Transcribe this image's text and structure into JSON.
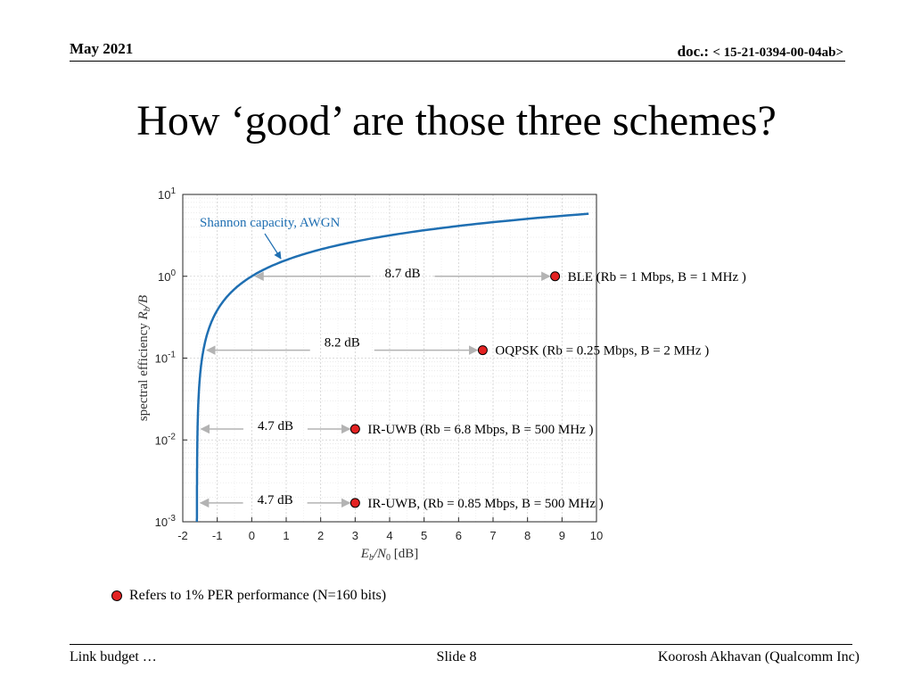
{
  "header": {
    "date": "May 2021",
    "doc_prefix": "doc.: ",
    "doc_number": "< 15-21-0394-00-04ab>"
  },
  "title": "How ‘good’ are those three schemes?",
  "chart_data": {
    "type": "line",
    "x_axis": {
      "label": "E_b/N_0 [dB]",
      "ticks": [
        -2,
        -1,
        0,
        1,
        2,
        3,
        4,
        5,
        6,
        7,
        8,
        9,
        10
      ],
      "range": [
        -2,
        10
      ]
    },
    "y_axis": {
      "label": "spectral efficiency R_b/B",
      "scale": "log",
      "range": [
        0.001,
        10
      ],
      "ticks": [
        "10^-3",
        "10^-2",
        "10^-1",
        "10^0",
        "10^1"
      ]
    },
    "grid": true,
    "curve": {
      "name": "Shannon capacity, AWGN",
      "color": "#1f6fb2",
      "relation": "Eb/N0 = (2^eta - 1)/eta"
    },
    "points": [
      {
        "eb_n0_db": 8.8,
        "efficiency": 1.0,
        "gap_db": "8.7 dB",
        "label": "BLE (Rb = 1 Mbps, B = 1 MHz )"
      },
      {
        "eb_n0_db": 6.7,
        "efficiency": 0.125,
        "gap_db": "8.2 dB",
        "label": "OQPSK (Rb = 0.25 Mbps, B = 2 MHz )"
      },
      {
        "eb_n0_db": 3.0,
        "efficiency": 0.0136,
        "gap_db": "4.7 dB",
        "label": "IR-UWB (Rb = 6.8 Mbps, B = 500 MHz )"
      },
      {
        "eb_n0_db": 3.0,
        "efficiency": 0.0017,
        "gap_db": "4.7 dB",
        "label": "IR-UWB, (Rb = 0.85 Mbps, B = 500 MHz )"
      }
    ],
    "point_color": "#e32222",
    "arrow_color": "#b3b3b3"
  },
  "note": "Refers to 1% PER performance (N=160 bits)",
  "footer": {
    "left": "Link budget …",
    "center": "Slide 8",
    "right": "Koorosh Akhavan (Qualcomm Inc)"
  }
}
